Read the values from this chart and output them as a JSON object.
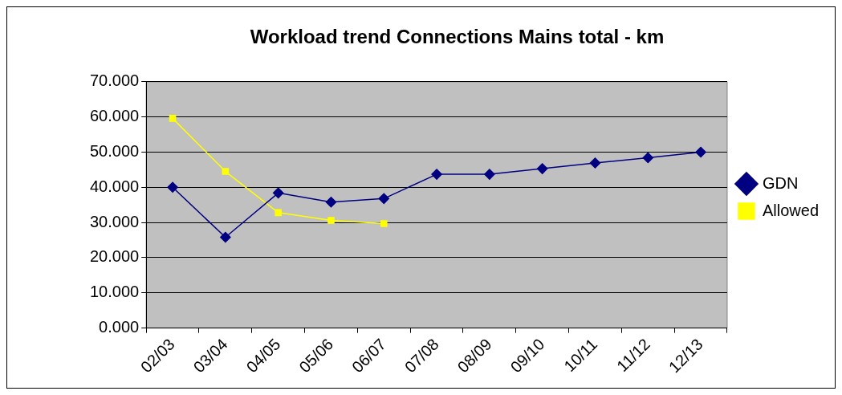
{
  "chart_data": {
    "type": "line",
    "title": "Workload trend Connections Mains total - km",
    "categories": [
      "02/03",
      "03/04",
      "04/05",
      "05/06",
      "06/07",
      "07/08",
      "08/09",
      "09/10",
      "10/11",
      "11/12",
      "12/13"
    ],
    "series": [
      {
        "name": "GDN",
        "color": "#000080",
        "marker": "diamond",
        "values": [
          40,
          25.8,
          38.4,
          35.8,
          36.8,
          43.7,
          43.7,
          45.3,
          46.9,
          48.4,
          50
        ]
      },
      {
        "name": "Allowed",
        "color": "#ffff00",
        "marker": "square",
        "values": [
          59.6,
          44.5,
          32.8,
          30.6,
          29.7,
          null,
          null,
          null,
          null,
          null,
          null
        ]
      }
    ],
    "ylim": [
      0,
      70
    ],
    "yticks": [
      {
        "value": 0,
        "label": "0.000"
      },
      {
        "value": 10,
        "label": "10.000"
      },
      {
        "value": 20,
        "label": "20.000"
      },
      {
        "value": 30,
        "label": "30.000"
      },
      {
        "value": 40,
        "label": "40.000"
      },
      {
        "value": 50,
        "label": "50.000"
      },
      {
        "value": 60,
        "label": "60.000"
      },
      {
        "value": 70,
        "label": "70.000"
      }
    ],
    "grid": "y",
    "legend": "right",
    "line_style": "solid"
  }
}
